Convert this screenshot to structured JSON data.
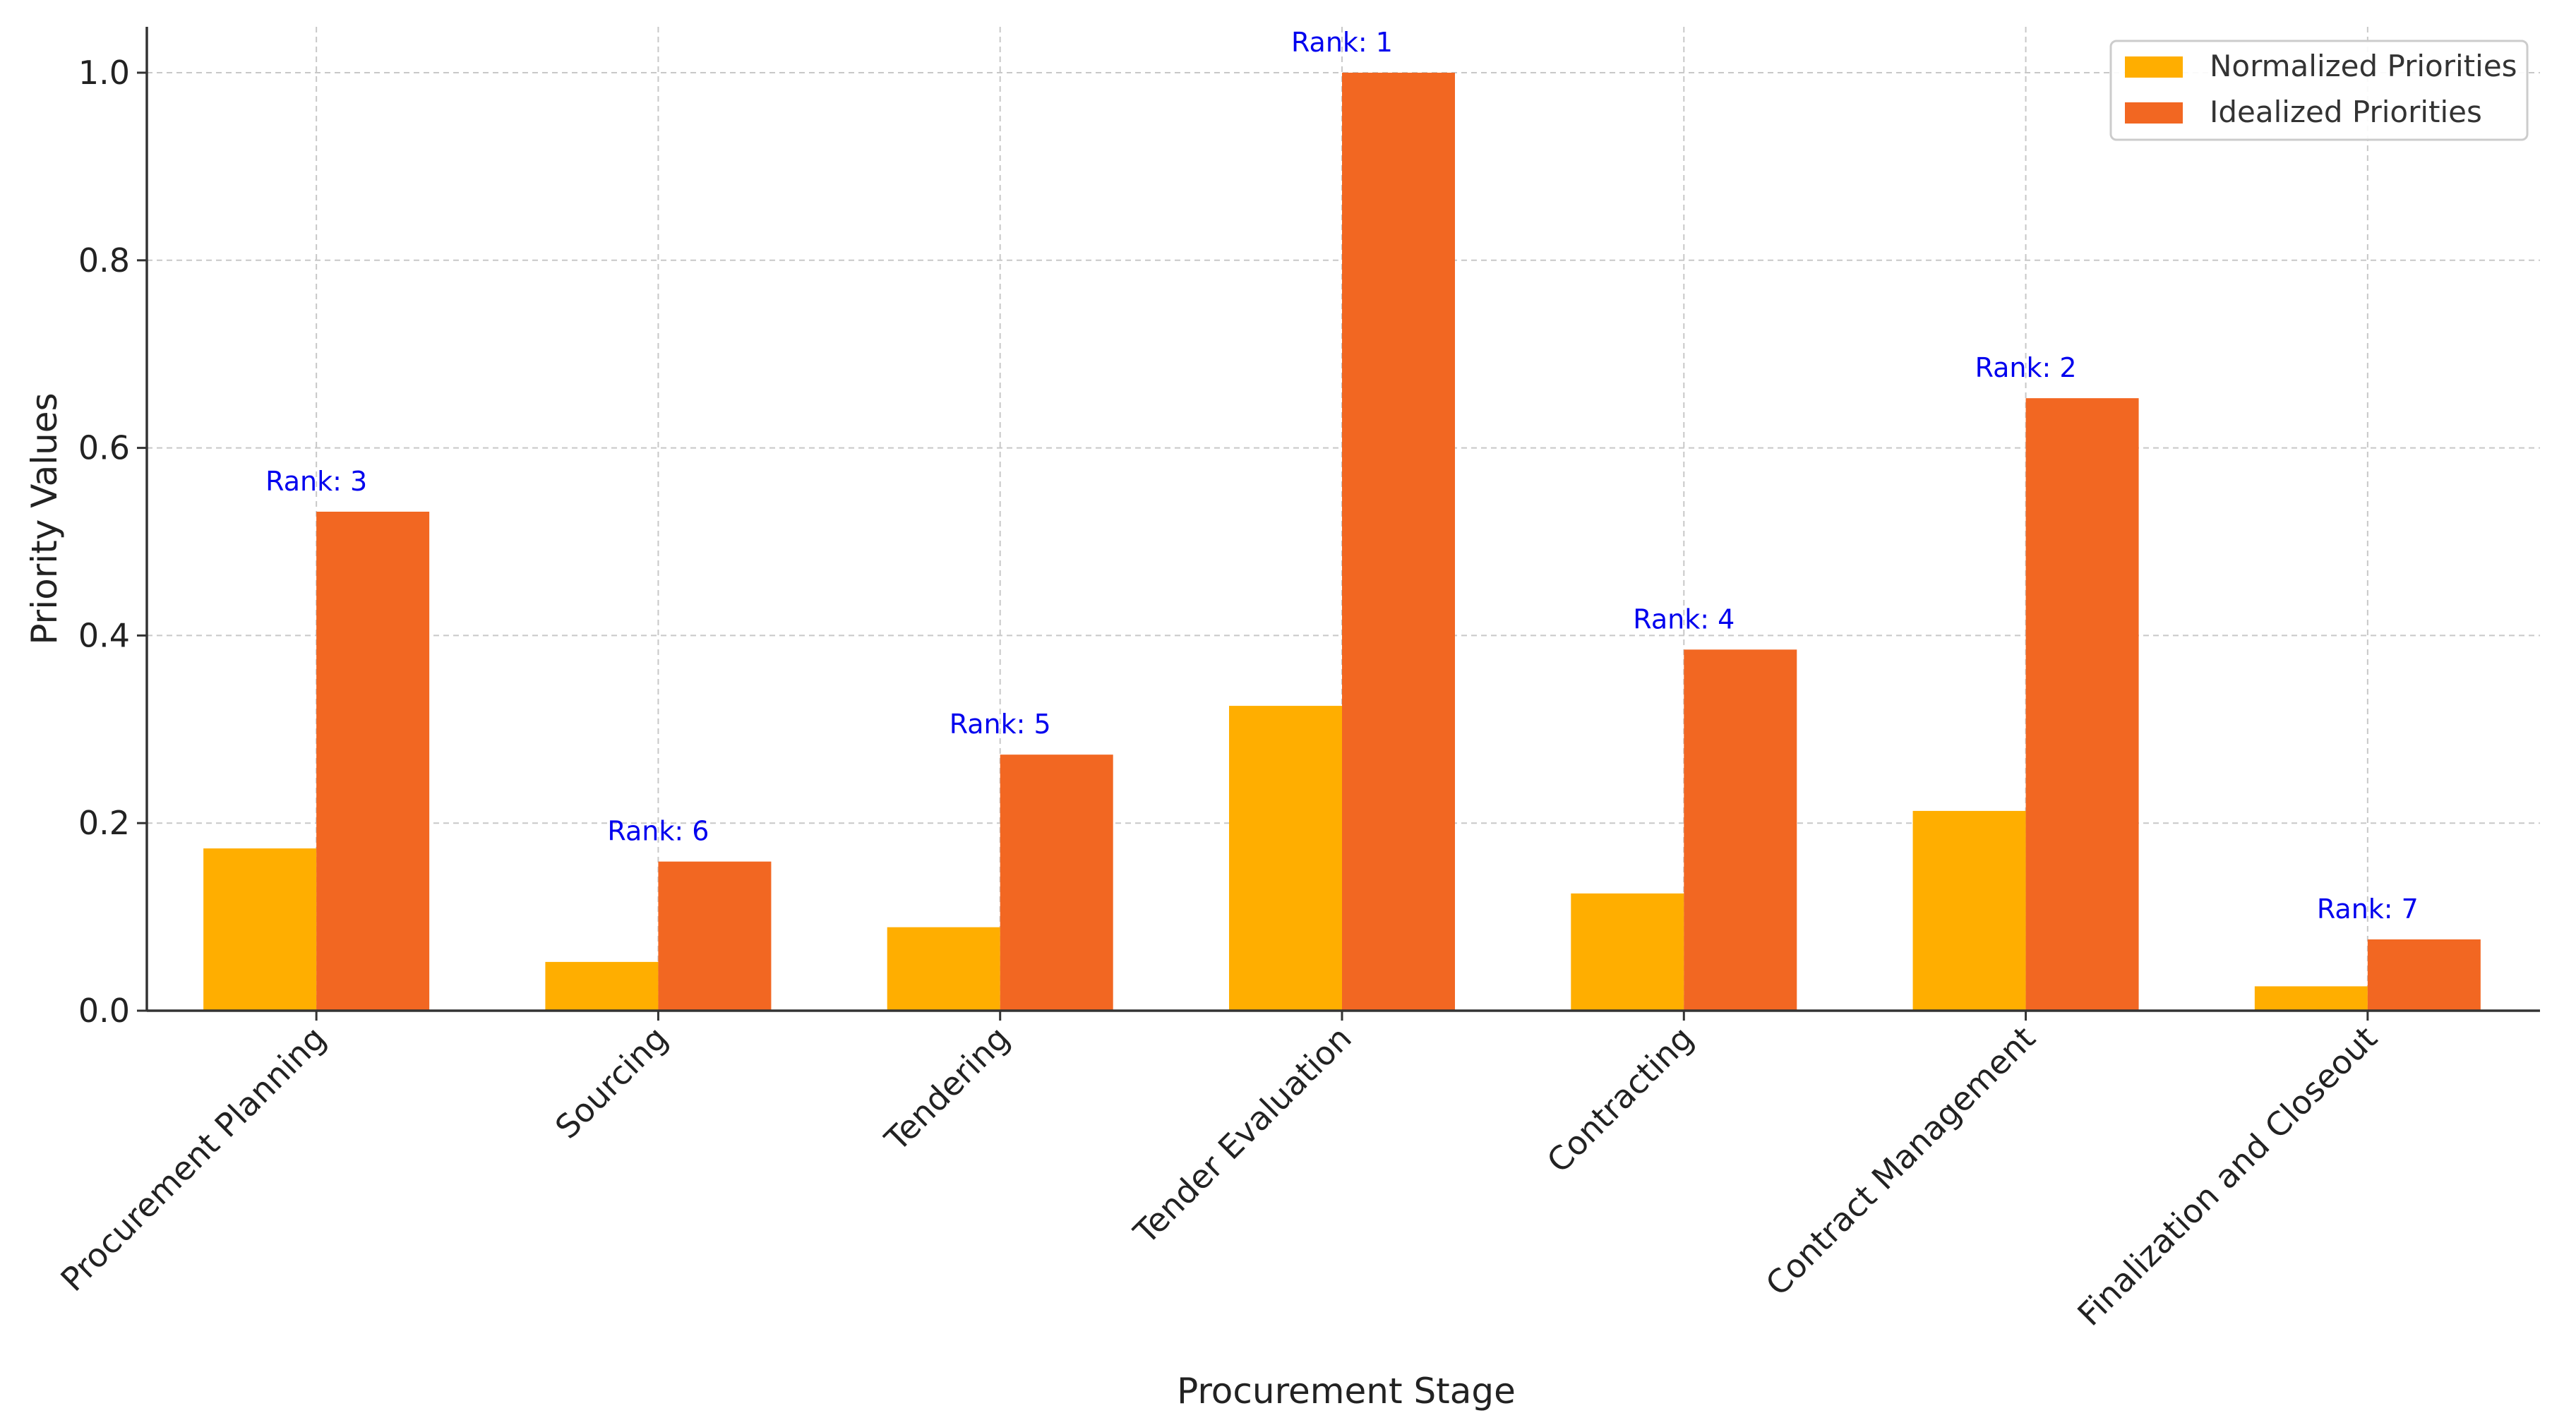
{
  "chart_data": {
    "type": "bar",
    "title": "",
    "xlabel": "Procurement Stage",
    "ylabel": "Priority Values",
    "categories": [
      "Procurement Planning",
      "Sourcing",
      "Tendering",
      "Tender Evaluation",
      "Contracting",
      "Contract Management",
      "Finalization and Closeout"
    ],
    "series": [
      {
        "name": "Normalized Priorities",
        "color": "#FFAE00",
        "values": [
          0.173,
          0.052,
          0.089,
          0.325,
          0.125,
          0.213,
          0.026
        ]
      },
      {
        "name": "Idealized Priorities",
        "color": "#F26722",
        "values": [
          0.532,
          0.159,
          0.273,
          1.0,
          0.385,
          0.653,
          0.076
        ]
      }
    ],
    "annotations": [
      "Rank: 3",
      "Rank: 6",
      "Rank: 5",
      "Rank: 1",
      "Rank: 4",
      "Rank: 2",
      "Rank: 7"
    ],
    "annotation_color": "#0000EE",
    "ylim": [
      0,
      1.05
    ],
    "yticks": [
      0.0,
      0.2,
      0.4,
      0.6,
      0.8,
      1.0
    ],
    "ytick_labels": [
      "0.0",
      "0.2",
      "0.4",
      "0.6",
      "0.8",
      "1.0"
    ],
    "grid": true,
    "legend_position": "top-right"
  }
}
